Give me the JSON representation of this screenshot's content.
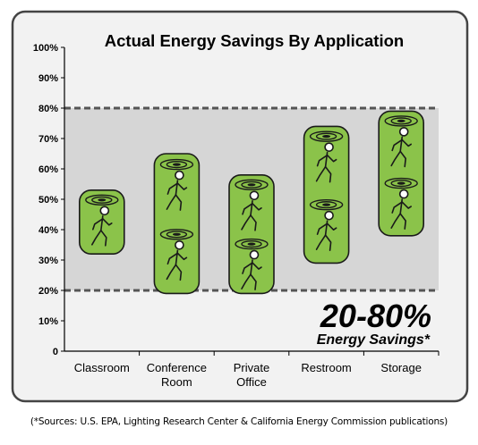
{
  "chart_data": {
    "type": "bar",
    "title": "Actual Energy Savings By Application",
    "y_ticks": [
      "0",
      "10%",
      "20%",
      "30%",
      "40%",
      "50%",
      "60%",
      "70%",
      "80%",
      "90%",
      "100%"
    ],
    "ylim": [
      0,
      100
    ],
    "categories": [
      {
        "lines": [
          "Classroom"
        ]
      },
      {
        "lines": [
          "Conference",
          "Room"
        ]
      },
      {
        "lines": [
          "Private",
          "Office"
        ]
      },
      {
        "lines": [
          "Restroom"
        ]
      },
      {
        "lines": [
          "Storage"
        ]
      }
    ],
    "ranges": [
      {
        "category": "Classroom",
        "low": 32,
        "high": 53,
        "icons": 1
      },
      {
        "category": "Conference Room",
        "low": 19,
        "high": 65,
        "icons": 2
      },
      {
        "category": "Private Office",
        "low": 19,
        "high": 58,
        "icons": 2
      },
      {
        "category": "Restroom",
        "low": 29,
        "high": 74,
        "icons": 2
      },
      {
        "category": "Storage",
        "low": 38,
        "high": 79,
        "icons": 2
      }
    ],
    "band": {
      "low": 20,
      "high": 80
    },
    "callout": {
      "value": "20-80%",
      "label": "Energy Savings*"
    },
    "grid": false,
    "colors": {
      "pill": "#8bc34a",
      "band": "#d6d6d6",
      "panel": "#f2f2f2",
      "dashed": "#555555"
    }
  },
  "footnote": "(*Sources: U.S. EPA, Lighting Research Center & California Energy Commission publications)"
}
